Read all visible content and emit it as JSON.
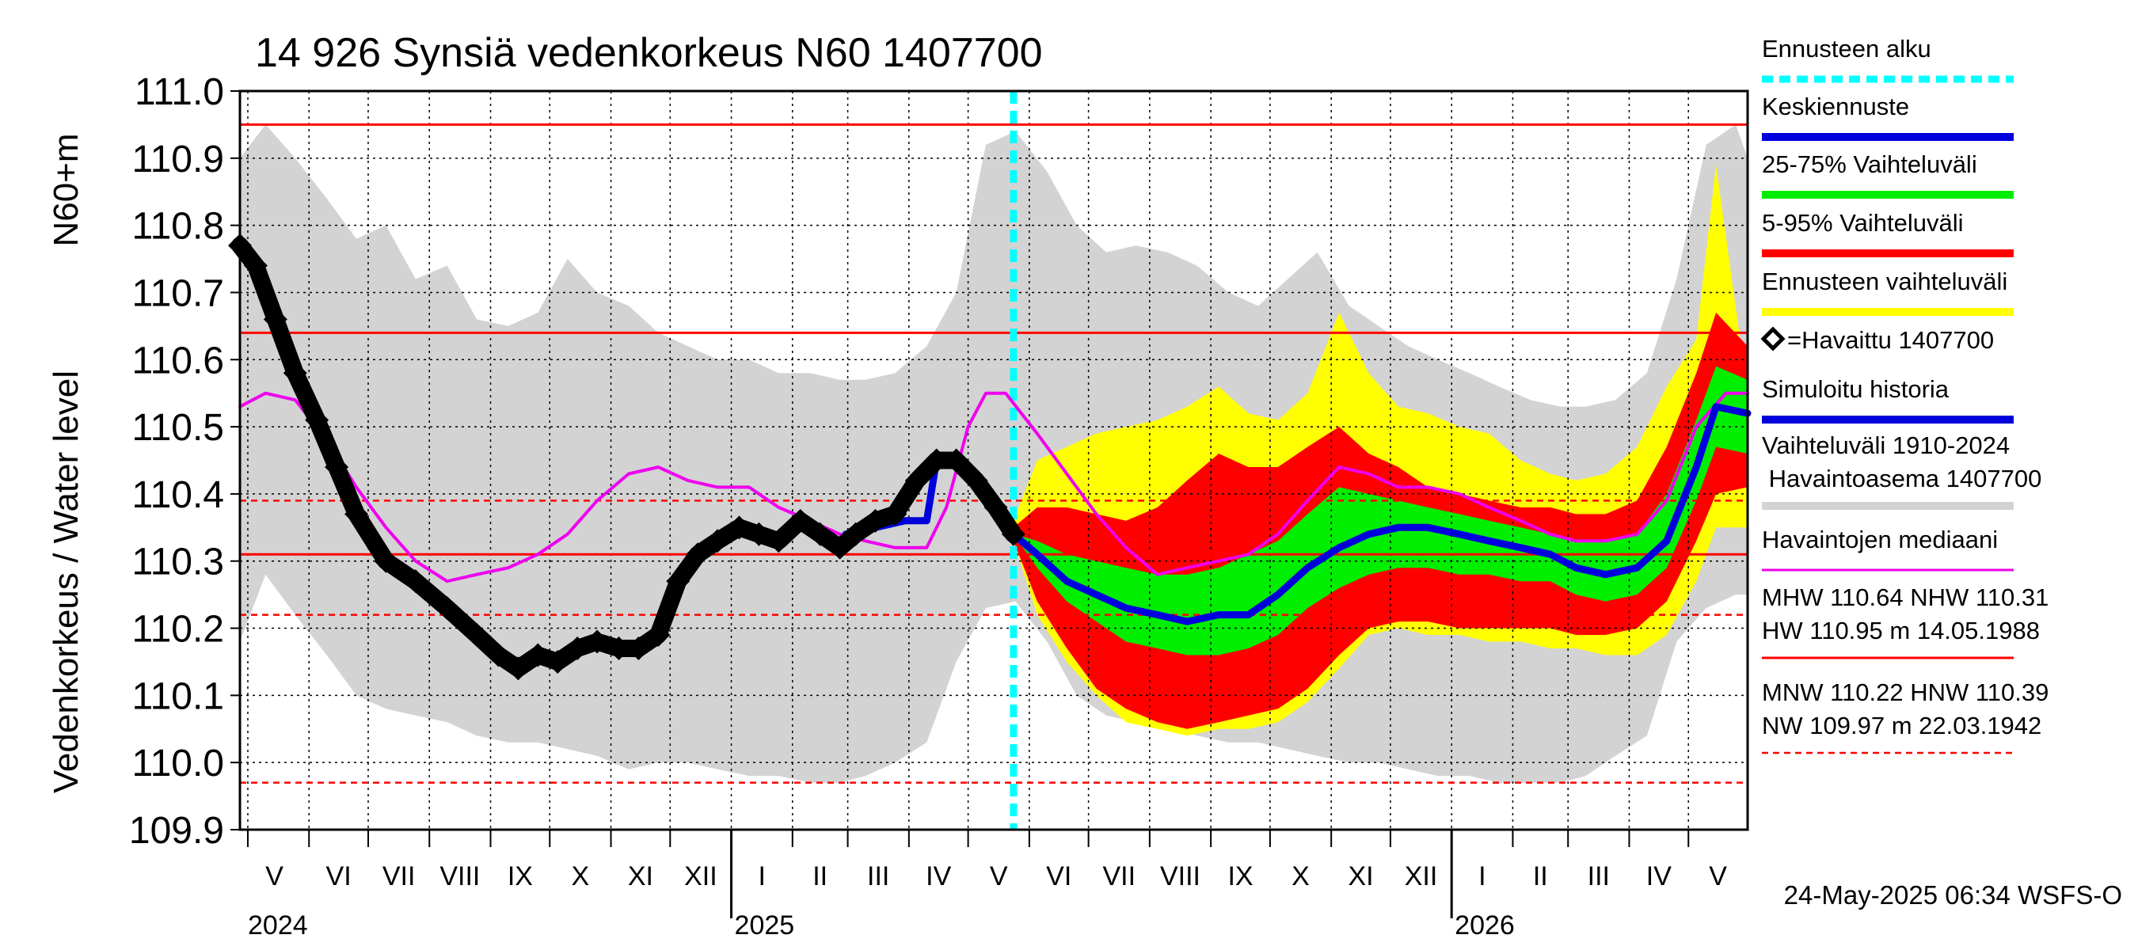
{
  "chart_data": {
    "type": "area",
    "title": "14 926 Synsiä vedenkorkeus N60 1407700",
    "ylabel_main": "Vedenkorkeus / Water level",
    "ylabel_unit": "N60+m",
    "ylim": [
      109.9,
      111.0
    ],
    "yticks": [
      "109.9",
      "110.0",
      "110.1",
      "110.2",
      "110.3",
      "110.4",
      "110.5",
      "110.6",
      "110.7",
      "110.8",
      "110.9",
      "111.0"
    ],
    "months": [
      "V",
      "VI",
      "VII",
      "VIII",
      "IX",
      "X",
      "XI",
      "XII",
      "I",
      "II",
      "III",
      "IV",
      "V",
      "VI",
      "VII",
      "VIII",
      "IX",
      "X",
      "XI",
      "XII",
      "I",
      "II",
      "III",
      "IV",
      "V"
    ],
    "years": [
      "2024",
      "2025",
      "2026"
    ],
    "x_range": [
      "2024-04-27",
      "2026-05-31"
    ],
    "forecast_start": "2025-05-24",
    "reference_lines": [
      {
        "label": "HW",
        "value": 110.95,
        "style": "solid"
      },
      {
        "label": "MHW",
        "value": 110.64,
        "style": "solid"
      },
      {
        "label": "NHW",
        "value": 110.31,
        "style": "solid"
      },
      {
        "label": "HNW",
        "value": 110.39,
        "style": "dashed"
      },
      {
        "label": "MNW",
        "value": 110.22,
        "style": "dashed"
      },
      {
        "label": "NW",
        "value": 109.97,
        "style": "dashed"
      }
    ],
    "series": [
      {
        "name": "Havaittu 1407700",
        "color": "#000000",
        "x": [
          "2024-04-27",
          "2024-05-05",
          "2024-05-15",
          "2024-05-25",
          "2024-06-05",
          "2024-06-15",
          "2024-06-25",
          "2024-07-10",
          "2024-07-25",
          "2024-08-10",
          "2024-08-25",
          "2024-09-05",
          "2024-09-15",
          "2024-09-25",
          "2024-10-05",
          "2024-10-15",
          "2024-10-25",
          "2024-11-05",
          "2024-11-15",
          "2024-11-25",
          "2024-12-05",
          "2024-12-15",
          "2024-12-25",
          "2025-01-05",
          "2025-01-15",
          "2025-01-25",
          "2025-02-05",
          "2025-02-15",
          "2025-02-25",
          "2025-03-05",
          "2025-03-15",
          "2025-03-25",
          "2025-04-05",
          "2025-04-15",
          "2025-04-25",
          "2025-05-05",
          "2025-05-15",
          "2025-05-24"
        ],
        "values": [
          110.77,
          110.74,
          110.66,
          110.58,
          110.51,
          110.44,
          110.37,
          110.3,
          110.27,
          110.23,
          110.19,
          110.16,
          110.14,
          110.16,
          110.15,
          110.17,
          110.18,
          110.17,
          110.17,
          110.19,
          110.27,
          110.31,
          110.33,
          110.35,
          110.34,
          110.33,
          110.36,
          110.34,
          110.32,
          110.34,
          110.36,
          110.37,
          110.42,
          110.45,
          110.45,
          110.42,
          110.38,
          110.34
        ]
      },
      {
        "name": "Havaintojen mediaani",
        "color": "#ee00ee",
        "x": [
          "2024-04-27",
          "2024-05-10",
          "2024-05-25",
          "2024-06-10",
          "2024-06-25",
          "2024-07-10",
          "2024-07-25",
          "2024-08-10",
          "2024-08-25",
          "2024-09-10",
          "2024-09-25",
          "2024-10-10",
          "2024-10-25",
          "2024-11-10",
          "2024-11-25",
          "2024-12-10",
          "2024-12-25",
          "2025-01-10",
          "2025-01-25",
          "2025-02-10",
          "2025-02-25",
          "2025-03-10",
          "2025-03-25",
          "2025-04-10",
          "2025-04-20",
          "2025-05-01",
          "2025-05-10",
          "2025-05-20",
          "2025-06-05",
          "2025-06-20",
          "2025-07-05",
          "2025-07-20",
          "2025-08-05",
          "2025-08-20",
          "2025-09-05",
          "2025-09-20",
          "2025-10-05",
          "2025-10-20",
          "2025-11-05",
          "2025-11-20",
          "2025-12-05",
          "2025-12-20",
          "2026-01-05",
          "2026-01-20",
          "2026-02-05",
          "2026-02-20",
          "2026-03-05",
          "2026-03-20",
          "2026-04-05",
          "2026-04-20",
          "2026-05-05",
          "2026-05-20",
          "2026-05-31"
        ],
        "values": [
          110.53,
          110.55,
          110.54,
          110.48,
          110.41,
          110.35,
          110.3,
          110.27,
          110.28,
          110.29,
          110.31,
          110.34,
          110.39,
          110.43,
          110.44,
          110.42,
          110.41,
          110.41,
          110.38,
          110.36,
          110.34,
          110.33,
          110.32,
          110.32,
          110.38,
          110.5,
          110.55,
          110.55,
          110.49,
          110.43,
          110.37,
          110.32,
          110.28,
          110.29,
          110.3,
          110.31,
          110.34,
          110.39,
          110.44,
          110.43,
          110.41,
          110.41,
          110.4,
          110.38,
          110.36,
          110.34,
          110.33,
          110.33,
          110.34,
          110.39,
          110.5,
          110.55,
          110.55
        ]
      },
      {
        "name": "Keskiennuste",
        "color": "#0000dd",
        "x": [
          "2025-05-24",
          "2025-06-05",
          "2025-06-20",
          "2025-07-05",
          "2025-07-20",
          "2025-08-05",
          "2025-08-20",
          "2025-09-05",
          "2025-09-20",
          "2025-10-05",
          "2025-10-20",
          "2025-11-05",
          "2025-11-20",
          "2025-12-05",
          "2025-12-20",
          "2026-01-05",
          "2026-01-20",
          "2026-02-05",
          "2026-02-20",
          "2026-03-05",
          "2026-03-20",
          "2026-04-05",
          "2026-04-20",
          "2026-05-05",
          "2026-05-15",
          "2026-05-31"
        ],
        "values": [
          110.34,
          110.31,
          110.27,
          110.25,
          110.23,
          110.22,
          110.21,
          110.22,
          110.22,
          110.25,
          110.29,
          110.32,
          110.34,
          110.35,
          110.35,
          110.34,
          110.33,
          110.32,
          110.31,
          110.29,
          110.28,
          110.29,
          110.33,
          110.44,
          110.53,
          110.52
        ]
      },
      {
        "name": "Simuloitu historia",
        "color": "#0000dd",
        "x": [
          "2025-02-28",
          "2025-03-15",
          "2025-03-30",
          "2025-04-10",
          "2025-04-15"
        ],
        "values": [
          110.34,
          110.35,
          110.36,
          110.36,
          110.45
        ]
      },
      {
        "name": "Vaihteluväli 1910-2024 Havaintoasema 1407700",
        "color": "#d3d3d3",
        "x": [
          "2024-04-27",
          "2024-05-10",
          "2024-05-25",
          "2024-06-10",
          "2024-06-25",
          "2024-07-10",
          "2024-07-25",
          "2024-08-10",
          "2024-08-25",
          "2024-09-10",
          "2024-09-25",
          "2024-10-10",
          "2024-10-25",
          "2024-11-10",
          "2024-11-25",
          "2024-12-10",
          "2024-12-25",
          "2025-01-10",
          "2025-01-25",
          "2025-02-10",
          "2025-02-25",
          "2025-03-10",
          "2025-03-25",
          "2025-04-10",
          "2025-04-25",
          "2025-05-10",
          "2025-05-25",
          "2025-06-10",
          "2025-06-25",
          "2025-07-10",
          "2025-07-25",
          "2025-08-10",
          "2025-08-25",
          "2025-09-10",
          "2025-09-25",
          "2025-10-10",
          "2025-10-25",
          "2025-11-10",
          "2025-11-25",
          "2025-12-10",
          "2025-12-25",
          "2026-01-10",
          "2026-01-25",
          "2026-02-10",
          "2026-02-25",
          "2026-03-10",
          "2026-03-25",
          "2026-04-10",
          "2026-04-25",
          "2026-05-10",
          "2026-05-25",
          "2026-05-31"
        ],
        "upper": [
          110.9,
          110.95,
          110.9,
          110.84,
          110.78,
          110.8,
          110.72,
          110.74,
          110.66,
          110.65,
          110.67,
          110.75,
          110.7,
          110.68,
          110.64,
          110.62,
          110.6,
          110.6,
          110.58,
          110.58,
          110.57,
          110.57,
          110.58,
          110.62,
          110.7,
          110.92,
          110.94,
          110.88,
          110.8,
          110.76,
          110.77,
          110.76,
          110.74,
          110.7,
          110.68,
          110.72,
          110.76,
          110.68,
          110.65,
          110.62,
          110.6,
          110.58,
          110.56,
          110.54,
          110.53,
          110.53,
          110.54,
          110.58,
          110.72,
          110.92,
          110.95,
          110.9
        ],
        "lower": [
          110.18,
          110.28,
          110.22,
          110.16,
          110.1,
          110.08,
          110.07,
          110.06,
          110.04,
          110.03,
          110.03,
          110.02,
          110.01,
          109.99,
          110.0,
          110.0,
          109.99,
          109.98,
          109.98,
          109.97,
          109.97,
          109.98,
          110.0,
          110.03,
          110.15,
          110.23,
          110.24,
          110.18,
          110.1,
          110.07,
          110.06,
          110.05,
          110.04,
          110.03,
          110.03,
          110.02,
          110.01,
          110.0,
          110.0,
          109.99,
          109.98,
          109.98,
          109.97,
          109.97,
          109.97,
          109.98,
          110.01,
          110.04,
          110.18,
          110.23,
          110.25,
          110.25
        ]
      },
      {
        "name": "Ennusteen vaihteluväli",
        "color": "#ffff00",
        "x": [
          "2025-05-24",
          "2025-06-05",
          "2025-06-20",
          "2025-07-05",
          "2025-07-20",
          "2025-08-05",
          "2025-08-20",
          "2025-09-05",
          "2025-09-20",
          "2025-10-05",
          "2025-10-20",
          "2025-11-05",
          "2025-11-20",
          "2025-12-05",
          "2025-12-20",
          "2026-01-05",
          "2026-01-20",
          "2026-02-05",
          "2026-02-20",
          "2026-03-05",
          "2026-03-20",
          "2026-04-05",
          "2026-04-20",
          "2026-05-05",
          "2026-05-15",
          "2026-05-31"
        ],
        "upper": [
          110.36,
          110.45,
          110.47,
          110.49,
          110.5,
          110.51,
          110.53,
          110.56,
          110.52,
          110.51,
          110.55,
          110.67,
          110.58,
          110.53,
          110.52,
          110.5,
          110.49,
          110.45,
          110.43,
          110.42,
          110.43,
          110.47,
          110.56,
          110.63,
          110.89,
          110.55
        ],
        "lower": [
          110.33,
          110.22,
          110.15,
          110.1,
          110.06,
          110.05,
          110.04,
          110.05,
          110.05,
          110.06,
          110.09,
          110.14,
          110.19,
          110.2,
          110.19,
          110.19,
          110.18,
          110.18,
          110.17,
          110.17,
          110.16,
          110.16,
          110.19,
          110.27,
          110.35,
          110.35
        ]
      },
      {
        "name": "5-95% Vaihteluväli",
        "color": "#ff0000",
        "x": [
          "2025-05-24",
          "2025-06-05",
          "2025-06-20",
          "2025-07-05",
          "2025-07-20",
          "2025-08-05",
          "2025-08-20",
          "2025-09-05",
          "2025-09-20",
          "2025-10-05",
          "2025-10-20",
          "2025-11-05",
          "2025-11-20",
          "2025-12-05",
          "2025-12-20",
          "2026-01-05",
          "2026-01-20",
          "2026-02-05",
          "2026-02-20",
          "2026-03-05",
          "2026-03-20",
          "2026-04-05",
          "2026-04-20",
          "2026-05-05",
          "2026-05-15",
          "2026-05-31"
        ],
        "upper": [
          110.35,
          110.38,
          110.38,
          110.37,
          110.36,
          110.38,
          110.42,
          110.46,
          110.44,
          110.44,
          110.47,
          110.5,
          110.46,
          110.44,
          110.41,
          110.4,
          110.39,
          110.38,
          110.38,
          110.37,
          110.37,
          110.39,
          110.47,
          110.58,
          110.67,
          110.62
        ],
        "lower": [
          110.33,
          110.24,
          110.17,
          110.11,
          110.08,
          110.06,
          110.05,
          110.06,
          110.07,
          110.08,
          110.11,
          110.16,
          110.2,
          110.21,
          110.21,
          110.2,
          110.2,
          110.2,
          110.2,
          110.19,
          110.19,
          110.2,
          110.24,
          110.33,
          110.4,
          110.41
        ]
      },
      {
        "name": "25-75% Vaihteluväli",
        "color": "#00ee00",
        "x": [
          "2025-05-24",
          "2025-06-05",
          "2025-06-20",
          "2025-07-05",
          "2025-07-20",
          "2025-08-05",
          "2025-08-20",
          "2025-09-05",
          "2025-09-20",
          "2025-10-05",
          "2025-10-20",
          "2025-11-05",
          "2025-11-20",
          "2025-12-05",
          "2025-12-20",
          "2026-01-05",
          "2026-01-20",
          "2026-02-05",
          "2026-02-20",
          "2026-03-05",
          "2026-03-20",
          "2026-04-05",
          "2026-04-20",
          "2026-05-05",
          "2026-05-15",
          "2026-05-31"
        ],
        "upper": [
          110.34,
          110.33,
          110.31,
          110.3,
          110.29,
          110.28,
          110.28,
          110.29,
          110.31,
          110.33,
          110.37,
          110.41,
          110.4,
          110.39,
          110.38,
          110.37,
          110.36,
          110.35,
          110.34,
          110.33,
          110.33,
          110.34,
          110.4,
          110.51,
          110.59,
          110.57
        ],
        "lower": [
          110.34,
          110.29,
          110.24,
          110.21,
          110.18,
          110.17,
          110.16,
          110.16,
          110.17,
          110.19,
          110.23,
          110.26,
          110.28,
          110.29,
          110.29,
          110.28,
          110.28,
          110.27,
          110.27,
          110.25,
          110.24,
          110.25,
          110.29,
          110.39,
          110.47,
          110.46
        ]
      }
    ],
    "legend": [
      {
        "label": "Ennusteen alku",
        "color": "#00ffff",
        "style": "dashed"
      },
      {
        "label": "Keskiennuste",
        "color": "#0000dd",
        "style": "line"
      },
      {
        "label": "25-75% Vaihteluväli",
        "color": "#00ee00",
        "style": "line"
      },
      {
        "label": "5-95% Vaihteluväli",
        "color": "#ff0000",
        "style": "line"
      },
      {
        "label": "Ennusteen vaihteluväli",
        "color": "#ffff00",
        "style": "line"
      },
      {
        "label": "=Havaittu 1407700",
        "color": "#000000",
        "style": "diamond"
      },
      {
        "label": "Simuloitu historia",
        "color": "#0000dd",
        "style": "line"
      },
      {
        "label": "Vaihteluväli 1910-2024",
        "label2": " Havaintoasema 1407700",
        "color": "#d3d3d3",
        "style": "line"
      },
      {
        "label": "Havaintojen mediaani",
        "color": "#ee00ee",
        "style": "thinline"
      },
      {
        "label": "MHW 110.64 NHW 110.31",
        "label2": "HW 110.95 m 14.05.1988",
        "color": "#ff0000",
        "style": "thinline"
      },
      {
        "label": "MNW 110.22 HNW 110.39",
        "label2": "NW 109.97 m 22.03.1942",
        "color": "#ff0000",
        "style": "dashline"
      }
    ],
    "footer": "24-May-2025 06:34 WSFS-O"
  }
}
